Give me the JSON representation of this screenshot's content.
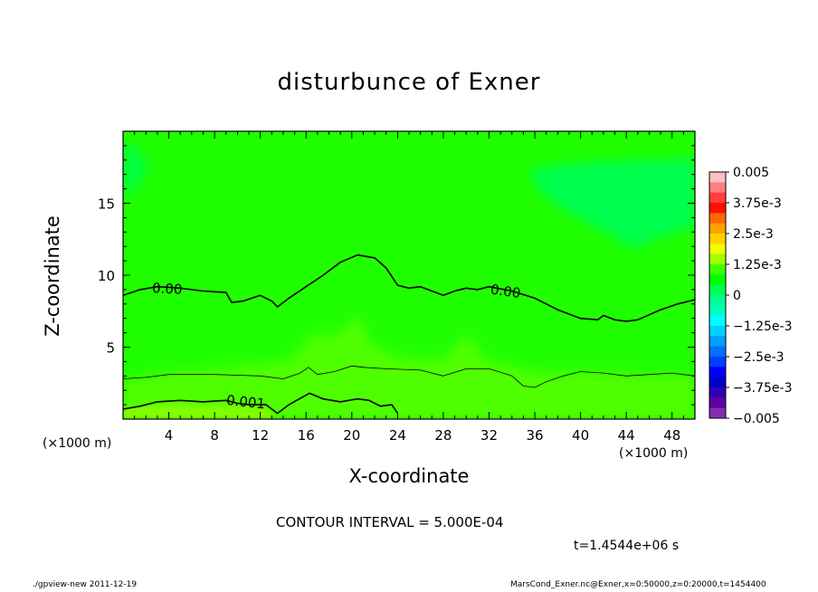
{
  "chart_data": {
    "type": "heatmap",
    "title": "disturbunce of Exner",
    "xlabel": "X-coordinate",
    "ylabel": "Z-coordinate",
    "x_unit": "(×1000 m)",
    "xlim": [
      0,
      50
    ],
    "ylim": [
      0,
      20
    ],
    "x_ticks": [
      4,
      8,
      12,
      16,
      20,
      24,
      28,
      32,
      36,
      40,
      44,
      48
    ],
    "y_ticks": [
      5,
      10,
      15
    ],
    "contour_labels": [
      "0.00",
      "0.00",
      "0.001"
    ],
    "contours": [
      {
        "level": 0.0,
        "label": "0.00",
        "points": [
          [
            0,
            8.6
          ],
          [
            1.5,
            9.0
          ],
          [
            3,
            9.2
          ],
          [
            5,
            9.1
          ],
          [
            7,
            8.9
          ],
          [
            9,
            8.8
          ],
          [
            9.5,
            8.1
          ],
          [
            10.5,
            8.2
          ],
          [
            12,
            8.6
          ],
          [
            13,
            8.2
          ],
          [
            13.5,
            7.8
          ],
          [
            14.5,
            8.4
          ],
          [
            16,
            9.2
          ],
          [
            17.5,
            10.0
          ],
          [
            19,
            10.9
          ],
          [
            20.5,
            11.4
          ],
          [
            22,
            11.2
          ],
          [
            23,
            10.5
          ],
          [
            24,
            9.3
          ],
          [
            25,
            9.1
          ],
          [
            26,
            9.2
          ],
          [
            27,
            8.9
          ],
          [
            28,
            8.6
          ],
          [
            29,
            8.9
          ],
          [
            30,
            9.1
          ],
          [
            31,
            9.0
          ],
          [
            32,
            9.2
          ],
          [
            34,
            8.9
          ],
          [
            36,
            8.4
          ],
          [
            38,
            7.6
          ],
          [
            40,
            7.0
          ],
          [
            41.5,
            6.9
          ],
          [
            42,
            7.2
          ],
          [
            43,
            6.9
          ],
          [
            44,
            6.8
          ],
          [
            45,
            6.9
          ],
          [
            47,
            7.6
          ],
          [
            48.5,
            8.0
          ],
          [
            50,
            8.3
          ]
        ]
      },
      {
        "level": 0.0005,
        "label": "",
        "points": [
          [
            0,
            2.8
          ],
          [
            2,
            2.9
          ],
          [
            4,
            3.1
          ],
          [
            8,
            3.1
          ],
          [
            12,
            3.0
          ],
          [
            14,
            2.8
          ],
          [
            15.5,
            3.2
          ],
          [
            16.2,
            3.6
          ],
          [
            17,
            3.1
          ],
          [
            18.5,
            3.3
          ],
          [
            20,
            3.7
          ],
          [
            21,
            3.6
          ],
          [
            23,
            3.5
          ],
          [
            26,
            3.4
          ],
          [
            28,
            3.0
          ],
          [
            30,
            3.5
          ],
          [
            32,
            3.5
          ],
          [
            34,
            3.0
          ],
          [
            35,
            2.3
          ],
          [
            36,
            2.2
          ],
          [
            37,
            2.6
          ],
          [
            38.5,
            3.0
          ],
          [
            40,
            3.3
          ],
          [
            42,
            3.2
          ],
          [
            44,
            3.0
          ],
          [
            46,
            3.1
          ],
          [
            48,
            3.2
          ],
          [
            50,
            3.0
          ]
        ]
      },
      {
        "level": 0.001,
        "label": "0.001",
        "points": [
          [
            0,
            0.7
          ],
          [
            1.5,
            0.9
          ],
          [
            3,
            1.2
          ],
          [
            5,
            1.3
          ],
          [
            7,
            1.2
          ],
          [
            9,
            1.3
          ],
          [
            10,
            1.1
          ],
          [
            11,
            1.0
          ],
          [
            12.5,
            1.0
          ],
          [
            13.5,
            0.4
          ],
          [
            14.5,
            1.0
          ],
          [
            16.3,
            1.8
          ],
          [
            17.5,
            1.4
          ],
          [
            19,
            1.2
          ],
          [
            20.5,
            1.4
          ],
          [
            21.5,
            1.3
          ],
          [
            22.5,
            0.9
          ],
          [
            23.5,
            1.0
          ],
          [
            24,
            0.4
          ]
        ]
      }
    ],
    "colorbar": {
      "labels": [
        "0.005",
        "3.75e-3",
        "2.5e-3",
        "1.25e-3",
        "0",
        "−1.25e-3",
        "−2.5e-3",
        "−3.75e-3",
        "−0.005"
      ],
      "colors": [
        "#ffc0c0",
        "#ff8080",
        "#ff4040",
        "#ff1000",
        "#ff6800",
        "#ffa000",
        "#ffd000",
        "#f0ff00",
        "#a0ff00",
        "#40ff00",
        "#00ff00",
        "#00ff50",
        "#00ff90",
        "#00ffc0",
        "#00ffff",
        "#00d0ff",
        "#00a0ff",
        "#0070ff",
        "#0040ff",
        "#0000ff",
        "#0000c8",
        "#3000b0",
        "#6000a0",
        "#8030b0"
      ]
    },
    "field_colors": {
      "background": "#20ff00",
      "upper_left": "#00ff40",
      "upper_right": "#00ff50",
      "lower_band": "#50ff00",
      "surface": "#80ff00"
    }
  },
  "contour_interval_text": "CONTOUR INTERVAL = 5.000E-04",
  "time_text": "t=1.4544e+06 s",
  "footer_left": "./gpview-new   2011-12-19",
  "footer_right": "MarsCond_Exner.nc@Exner,x=0:50000,z=0:20000,t=1454400"
}
